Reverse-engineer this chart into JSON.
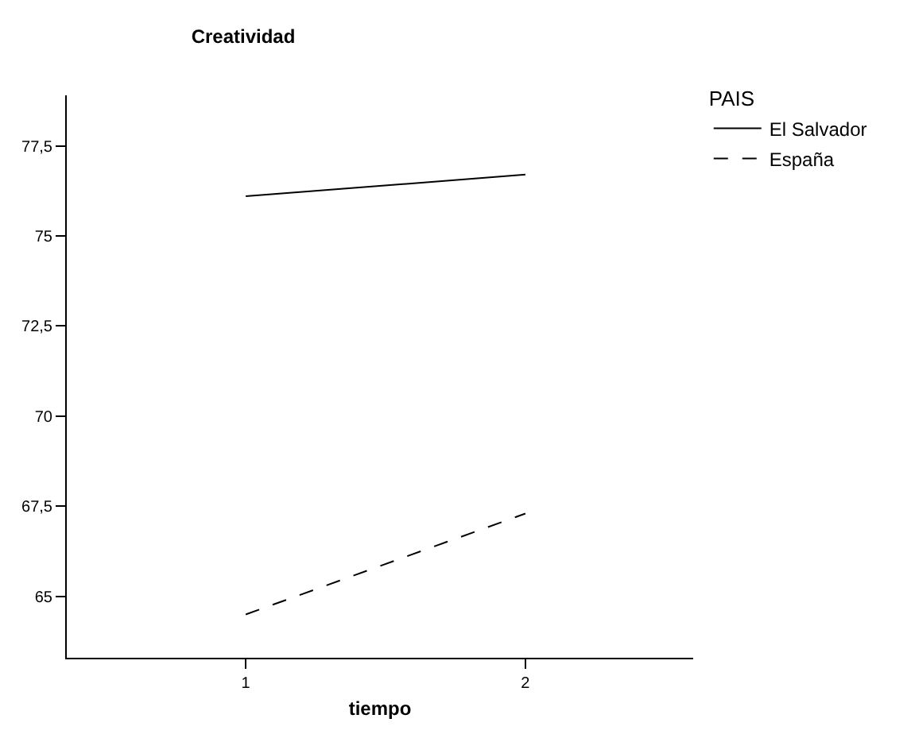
{
  "chart_data": {
    "type": "line",
    "title": "Creatividad",
    "xlabel": "tiempo",
    "legend_title": "PAIS",
    "x": [
      1,
      2
    ],
    "series": [
      {
        "name": "El Salvador",
        "color": "#000000",
        "line_style": "solid",
        "values": [
          76.1,
          76.7
        ]
      },
      {
        "name": "España",
        "color": "#000000",
        "line_style": "dashed",
        "values": [
          64.5,
          67.3
        ]
      }
    ],
    "xlim": [
      0.36,
      2.6
    ],
    "xticks": [
      1,
      2
    ],
    "ylim": [
      63.3,
      78.9
    ],
    "yticks": [
      {
        "value": 65,
        "label": "65"
      },
      {
        "value": 67.5,
        "label": "67,5"
      },
      {
        "value": 70,
        "label": "70"
      },
      {
        "value": 72.5,
        "label": "72,5"
      },
      {
        "value": 75,
        "label": "75"
      },
      {
        "value": 77.5,
        "label": "77,5"
      }
    ],
    "legend": "top right",
    "marker": "none"
  }
}
